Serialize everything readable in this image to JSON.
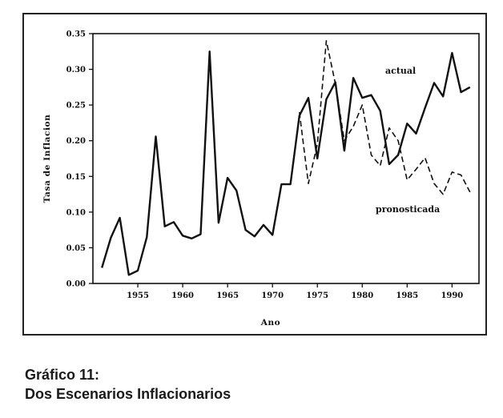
{
  "chart_data": {
    "type": "line",
    "title": "",
    "xlabel": "Ano",
    "ylabel": "Tasa de Inflacion",
    "xlim": [
      1950,
      1993
    ],
    "ylim": [
      0,
      0.35
    ],
    "x_ticks": [
      1955,
      1960,
      1965,
      1970,
      1975,
      1980,
      1985,
      1990
    ],
    "y_ticks": [
      "0.00",
      "0.05",
      "0.10",
      "0.15",
      "0.20",
      "0.25",
      "0.30",
      "0.35"
    ],
    "grid": false,
    "series": [
      {
        "name": "actual",
        "style": "solid",
        "x": [
          1951,
          1952,
          1953,
          1954,
          1955,
          1956,
          1957,
          1958,
          1959,
          1960,
          1961,
          1962,
          1963,
          1964,
          1965,
          1966,
          1967,
          1968,
          1969,
          1970,
          1971,
          1972,
          1973,
          1974,
          1975,
          1976,
          1977,
          1978,
          1979,
          1980,
          1981,
          1982,
          1983,
          1984,
          1985,
          1986,
          1987,
          1988,
          1989,
          1990,
          1991,
          1992
        ],
        "values": [
          0.022,
          0.064,
          0.092,
          0.012,
          0.018,
          0.065,
          0.206,
          0.08,
          0.086,
          0.067,
          0.063,
          0.069,
          0.325,
          0.085,
          0.148,
          0.13,
          0.075,
          0.066,
          0.082,
          0.068,
          0.139,
          0.139,
          0.235,
          0.26,
          0.175,
          0.258,
          0.282,
          0.186,
          0.288,
          0.26,
          0.264,
          0.242,
          0.167,
          0.18,
          0.224,
          0.21,
          0.246,
          0.281,
          0.262,
          0.323,
          0.268,
          0.275
        ]
      },
      {
        "name": "pronosticada",
        "style": "dashed",
        "x": [
          1973,
          1974,
          1975,
          1976,
          1977,
          1978,
          1979,
          1980,
          1981,
          1982,
          1983,
          1984,
          1985,
          1986,
          1987,
          1988,
          1989,
          1990,
          1991,
          1992
        ],
        "values": [
          0.24,
          0.14,
          0.195,
          0.34,
          0.28,
          0.2,
          0.22,
          0.25,
          0.18,
          0.165,
          0.218,
          0.2,
          0.145,
          0.16,
          0.176,
          0.14,
          0.125,
          0.156,
          0.152,
          0.128
        ]
      }
    ],
    "annotations": [
      {
        "text": "actual",
        "series": "actual"
      },
      {
        "text": "pronosticada",
        "series": "pronosticada"
      }
    ]
  },
  "caption": {
    "line1": "Gráfico 11:",
    "line2": "Dos Escenarios Inflacionarios"
  },
  "colors": {
    "ink": "#111111",
    "frame": "#222222"
  }
}
